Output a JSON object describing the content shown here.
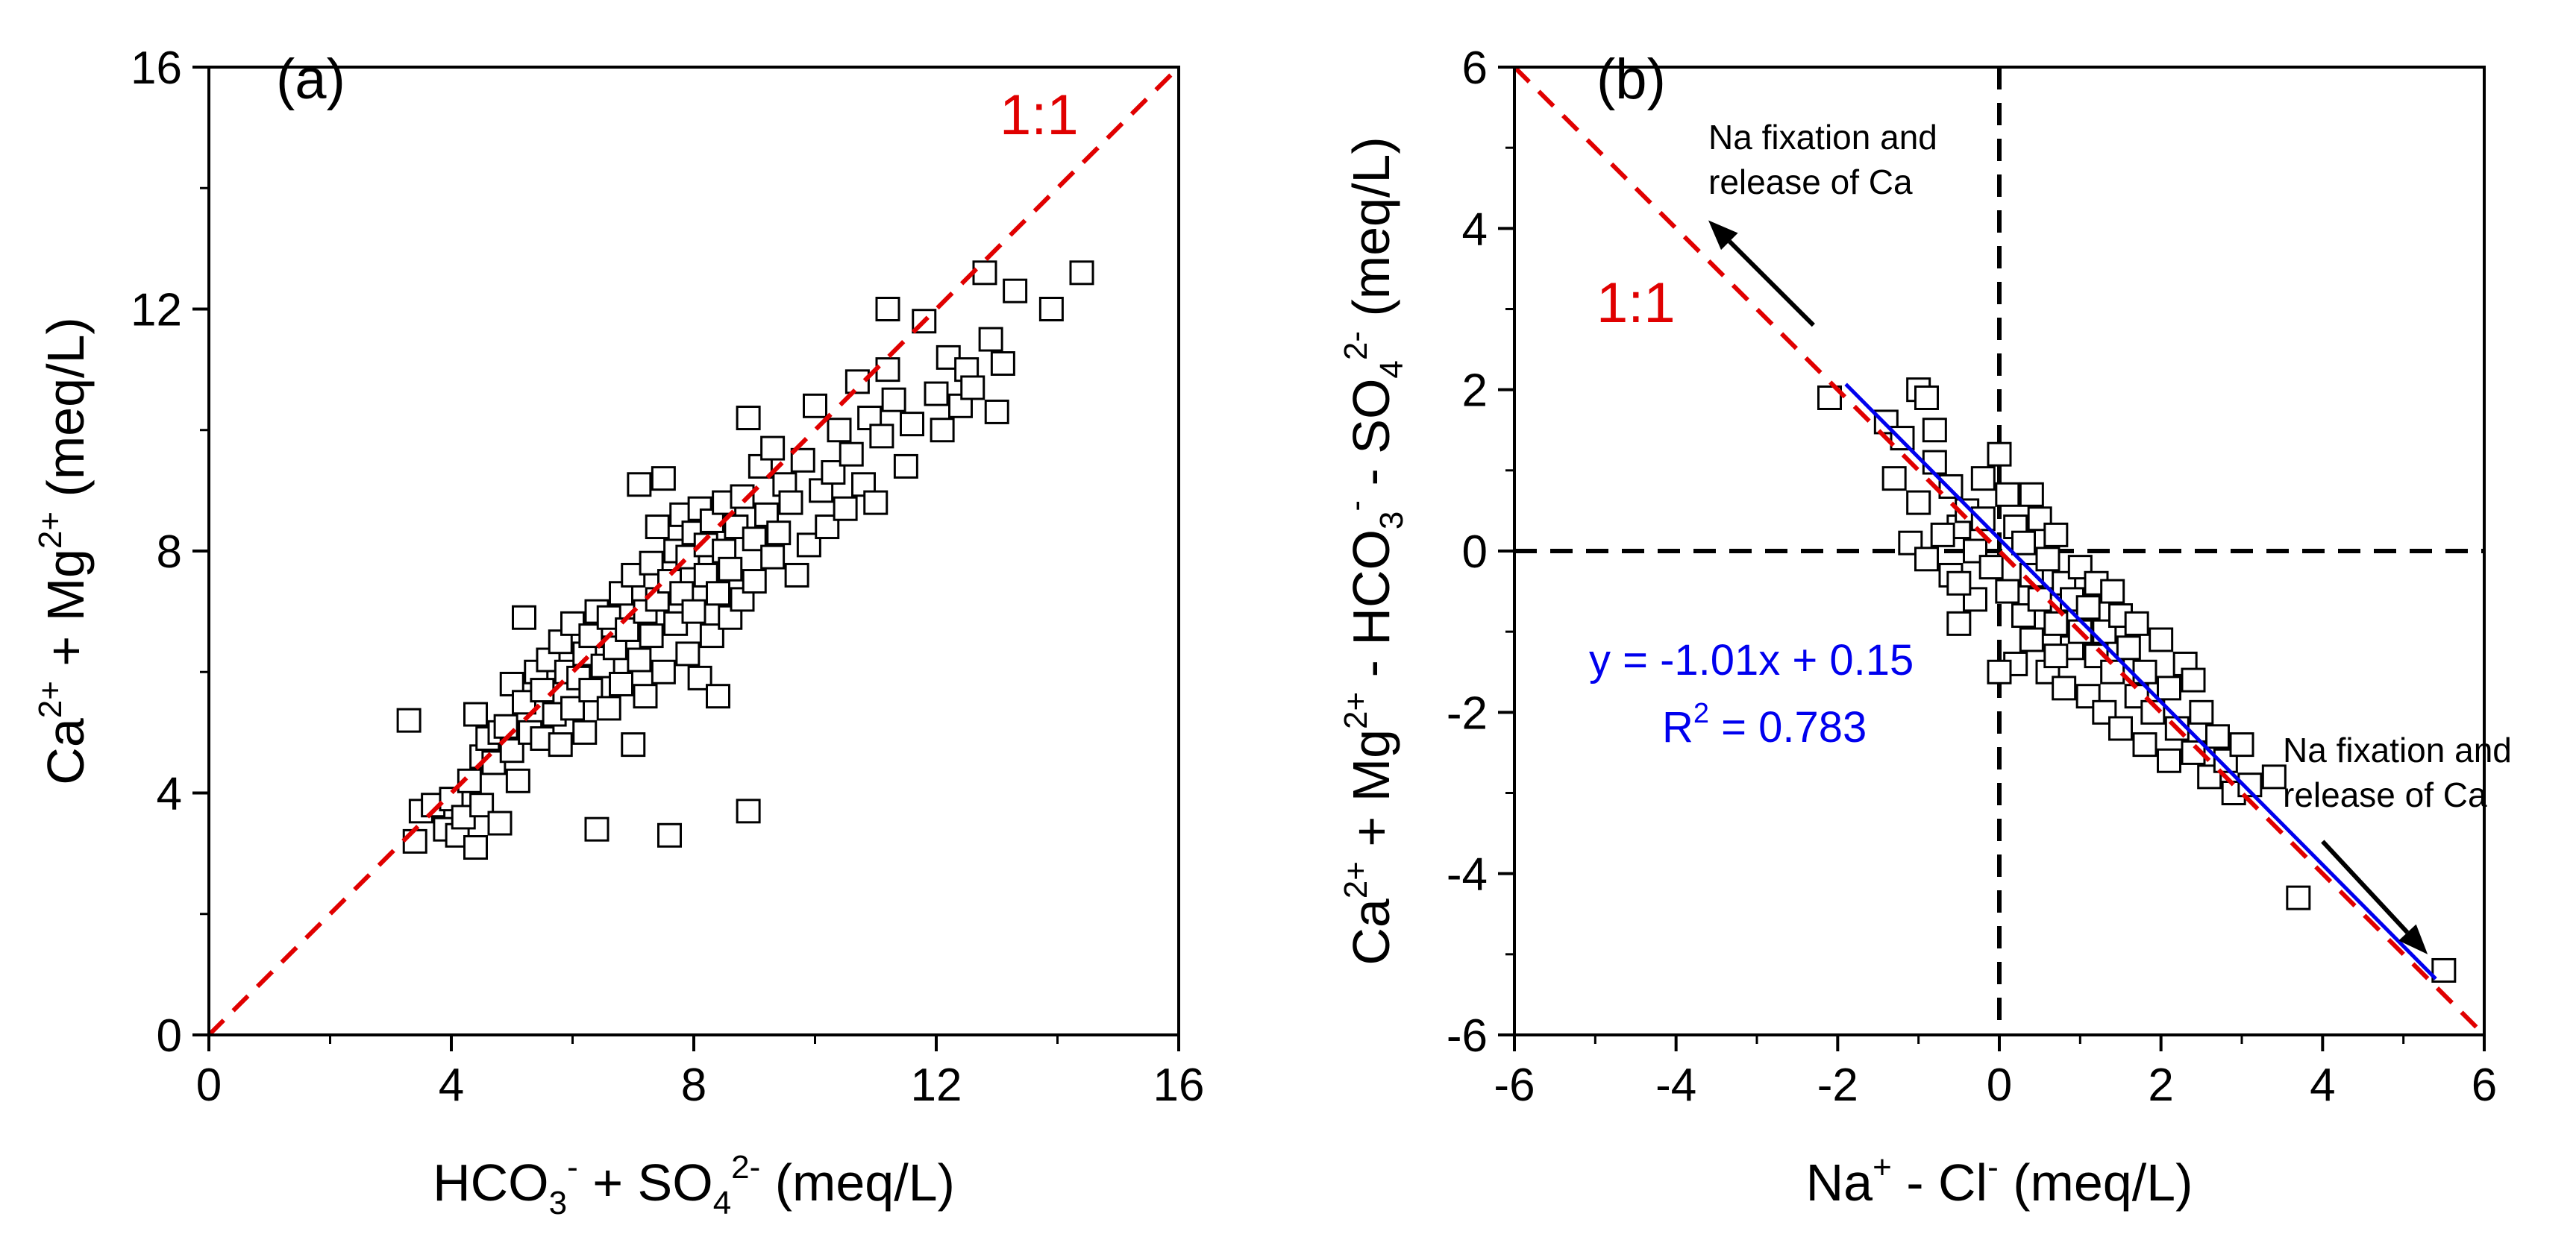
{
  "chart_data": [
    {
      "type": "scatter",
      "panel_label": "(a)",
      "xlabel": "HCO3- + SO42- (meq/L)",
      "xlabel_parts": {
        "a": "HCO",
        "b": "3",
        "c": "-",
        "d": " + SO",
        "e": "4",
        "f": "2-",
        "g": " (meq/L)"
      },
      "ylabel": "Ca2+ + Mg2+ (meq/L)",
      "ylabel_parts": {
        "a": "Ca",
        "b": "2+",
        "c": " + Mg",
        "d": "2+",
        "e": " (meq/L)"
      },
      "xlim": [
        0,
        16
      ],
      "ylim": [
        0,
        16
      ],
      "x_ticks": [
        0,
        4,
        8,
        12,
        16
      ],
      "x_tick_labels": [
        "0",
        "4",
        "8",
        "12",
        "16"
      ],
      "y_ticks": [
        0,
        4,
        8,
        12,
        16
      ],
      "y_tick_labels": [
        "0",
        "4",
        "8",
        "12",
        "16"
      ],
      "reference_line": {
        "label": "1:1",
        "from": [
          0,
          0
        ],
        "to": [
          16,
          16
        ],
        "color": "#e00000"
      },
      "marker_color": "#000000",
      "points": [
        [
          3.3,
          5.2
        ],
        [
          3.4,
          3.2
        ],
        [
          3.5,
          3.7
        ],
        [
          3.7,
          3.8
        ],
        [
          3.9,
          3.4
        ],
        [
          4.0,
          3.9
        ],
        [
          4.1,
          3.3
        ],
        [
          4.2,
          3.6
        ],
        [
          4.3,
          4.2
        ],
        [
          4.4,
          3.1
        ],
        [
          4.4,
          5.3
        ],
        [
          4.5,
          4.6
        ],
        [
          4.5,
          3.8
        ],
        [
          4.6,
          4.9
        ],
        [
          4.7,
          4.5
        ],
        [
          4.8,
          5.0
        ],
        [
          4.8,
          3.5
        ],
        [
          4.9,
          5.1
        ],
        [
          5.0,
          4.7
        ],
        [
          5.0,
          5.8
        ],
        [
          5.1,
          4.2
        ],
        [
          5.2,
          5.5
        ],
        [
          5.2,
          6.9
        ],
        [
          5.3,
          5.0
        ],
        [
          5.4,
          6.0
        ],
        [
          5.5,
          4.9
        ],
        [
          5.5,
          5.7
        ],
        [
          5.6,
          6.2
        ],
        [
          5.7,
          5.3
        ],
        [
          5.8,
          6.5
        ],
        [
          5.8,
          4.8
        ],
        [
          5.9,
          6.0
        ],
        [
          6.0,
          5.4
        ],
        [
          6.0,
          6.8
        ],
        [
          6.1,
          5.9
        ],
        [
          6.2,
          6.3
        ],
        [
          6.2,
          5.0
        ],
        [
          6.3,
          6.6
        ],
        [
          6.3,
          5.7
        ],
        [
          6.4,
          3.4
        ],
        [
          6.4,
          7.0
        ],
        [
          6.5,
          6.1
        ],
        [
          6.6,
          5.4
        ],
        [
          6.6,
          6.9
        ],
        [
          6.7,
          6.4
        ],
        [
          6.8,
          7.3
        ],
        [
          6.8,
          5.8
        ],
        [
          6.9,
          6.7
        ],
        [
          7.0,
          4.8
        ],
        [
          7.0,
          7.6
        ],
        [
          7.1,
          6.2
        ],
        [
          7.1,
          9.1
        ],
        [
          7.2,
          7.0
        ],
        [
          7.2,
          5.6
        ],
        [
          7.3,
          7.8
        ],
        [
          7.3,
          6.6
        ],
        [
          7.4,
          8.4
        ],
        [
          7.4,
          7.2
        ],
        [
          7.5,
          9.2
        ],
        [
          7.5,
          6.0
        ],
        [
          7.6,
          7.5
        ],
        [
          7.6,
          3.3
        ],
        [
          7.7,
          8.0
        ],
        [
          7.7,
          6.8
        ],
        [
          7.8,
          8.6
        ],
        [
          7.8,
          7.3
        ],
        [
          7.9,
          6.3
        ],
        [
          7.9,
          7.9
        ],
        [
          8.0,
          8.3
        ],
        [
          8.0,
          7.0
        ],
        [
          8.1,
          8.7
        ],
        [
          8.1,
          5.9
        ],
        [
          8.2,
          7.6
        ],
        [
          8.2,
          8.1
        ],
        [
          8.3,
          6.6
        ],
        [
          8.3,
          8.5
        ],
        [
          8.4,
          7.3
        ],
        [
          8.4,
          5.6
        ],
        [
          8.5,
          8.0
        ],
        [
          8.5,
          8.8
        ],
        [
          8.6,
          7.7
        ],
        [
          8.6,
          6.9
        ],
        [
          8.7,
          8.4
        ],
        [
          8.8,
          7.2
        ],
        [
          8.8,
          8.9
        ],
        [
          8.9,
          3.7
        ],
        [
          8.9,
          10.2
        ],
        [
          9.0,
          8.2
        ],
        [
          9.0,
          7.5
        ],
        [
          9.1,
          9.4
        ],
        [
          9.2,
          8.6
        ],
        [
          9.3,
          7.9
        ],
        [
          9.3,
          9.7
        ],
        [
          9.4,
          8.3
        ],
        [
          9.5,
          9.1
        ],
        [
          9.6,
          8.8
        ],
        [
          9.7,
          7.6
        ],
        [
          9.8,
          9.5
        ],
        [
          9.9,
          8.1
        ],
        [
          10.0,
          10.4
        ],
        [
          10.1,
          9.0
        ],
        [
          10.2,
          8.4
        ],
        [
          10.3,
          9.3
        ],
        [
          10.4,
          10.0
        ],
        [
          10.5,
          8.7
        ],
        [
          10.6,
          9.6
        ],
        [
          10.7,
          10.8
        ],
        [
          10.8,
          9.1
        ],
        [
          10.9,
          10.2
        ],
        [
          11.0,
          8.8
        ],
        [
          11.1,
          9.9
        ],
        [
          11.2,
          12.0
        ],
        [
          11.2,
          11.0
        ],
        [
          11.3,
          10.5
        ],
        [
          11.5,
          9.4
        ],
        [
          11.6,
          10.1
        ],
        [
          11.8,
          11.8
        ],
        [
          12.0,
          10.6
        ],
        [
          12.1,
          10.0
        ],
        [
          12.2,
          11.2
        ],
        [
          12.4,
          10.4
        ],
        [
          12.5,
          11.0
        ],
        [
          12.6,
          10.7
        ],
        [
          12.8,
          12.6
        ],
        [
          12.9,
          11.5
        ],
        [
          13.0,
          10.3
        ],
        [
          13.1,
          11.1
        ],
        [
          13.3,
          12.3
        ],
        [
          13.9,
          12.0
        ],
        [
          14.4,
          12.6
        ]
      ]
    },
    {
      "type": "scatter",
      "panel_label": "(b)",
      "xlabel": "Na+ - Cl- (meq/L)",
      "xlabel_parts": {
        "a": "Na",
        "b": "+",
        "c": " - Cl",
        "d": "-",
        "e": " (meq/L)"
      },
      "ylabel": "Ca2+ + Mg2+ - HCO3- - SO42- (meq/L)",
      "ylabel_parts": {
        "a": "Ca",
        "b": "2+",
        "c": " + Mg",
        "d": "2+",
        "e": " - HCO",
        "f": "3",
        "g": "-",
        "h": " - SO",
        "i": "4",
        "j": "2-",
        "k": " (meq/L)"
      },
      "xlim": [
        -6,
        6
      ],
      "ylim": [
        -6,
        6
      ],
      "x_ticks": [
        -6,
        -4,
        -2,
        0,
        2,
        4,
        6
      ],
      "x_tick_labels": [
        "-6",
        "-4",
        "-2",
        "0",
        "2",
        "4",
        "6"
      ],
      "y_ticks": [
        -6,
        -4,
        -2,
        0,
        2,
        4,
        6
      ],
      "y_tick_labels": [
        "-6",
        "-4",
        "-2",
        "0",
        "2",
        "4",
        "6"
      ],
      "reference_line": {
        "label": "1:1",
        "from": [
          -6,
          6
        ],
        "to": [
          6,
          -6
        ],
        "color": "#e00000"
      },
      "fit_line": {
        "slope": -1.01,
        "intercept": 0.15,
        "x_range": [
          -1.9,
          5.4
        ],
        "color": "#0000ee"
      },
      "equation": "y = -1.01x + 0.15",
      "r2_parts": {
        "a": "R",
        "b": "2",
        "c": " = 0.783"
      },
      "annotations": [
        {
          "line1": "Na fixation and",
          "line2": "release of Ca",
          "arrow_from": [
            -2.3,
            2.8
          ],
          "arrow_to": [
            -3.6,
            4.1
          ]
        },
        {
          "line1": "Na fixation and",
          "line2": "release of Ca",
          "arrow_from": [
            4.0,
            -3.6
          ],
          "arrow_to": [
            5.3,
            -5.0
          ]
        }
      ],
      "zero_lines": {
        "x": 0,
        "y": 0,
        "color": "#000000",
        "style": "dashed"
      },
      "marker_color": "#000000",
      "points": [
        [
          -2.1,
          1.9
        ],
        [
          -1.4,
          1.6
        ],
        [
          -1.2,
          1.4
        ],
        [
          -1.0,
          2.0
        ],
        [
          -0.9,
          1.9
        ],
        [
          -0.8,
          1.5
        ],
        [
          -1.3,
          0.9
        ],
        [
          -1.0,
          0.6
        ],
        [
          -0.8,
          1.1
        ],
        [
          -0.6,
          0.8
        ],
        [
          -0.5,
          0.3
        ],
        [
          -1.1,
          0.1
        ],
        [
          -0.9,
          -0.1
        ],
        [
          -0.7,
          0.2
        ],
        [
          -0.6,
          -0.3
        ],
        [
          -0.4,
          0.5
        ],
        [
          -0.3,
          0.0
        ],
        [
          -0.2,
          0.9
        ],
        [
          -0.3,
          -0.6
        ],
        [
          -0.5,
          -0.9
        ],
        [
          -0.1,
          -0.2
        ],
        [
          0.0,
          1.2
        ],
        [
          0.1,
          0.7
        ],
        [
          0.1,
          -0.5
        ],
        [
          0.2,
          -1.4
        ],
        [
          0.2,
          0.3
        ],
        [
          0.3,
          -0.8
        ],
        [
          0.3,
          0.1
        ],
        [
          0.4,
          -0.3
        ],
        [
          0.4,
          -1.1
        ],
        [
          0.5,
          0.4
        ],
        [
          0.5,
          -0.6
        ],
        [
          0.6,
          -1.5
        ],
        [
          0.6,
          -0.1
        ],
        [
          0.7,
          -0.9
        ],
        [
          0.7,
          0.2
        ],
        [
          0.8,
          -0.4
        ],
        [
          0.8,
          -1.7
        ],
        [
          0.9,
          -1.2
        ],
        [
          0.9,
          -0.6
        ],
        [
          1.0,
          -0.2
        ],
        [
          1.0,
          -1.0
        ],
        [
          1.1,
          -1.8
        ],
        [
          1.1,
          -0.7
        ],
        [
          1.2,
          -1.3
        ],
        [
          1.2,
          -0.4
        ],
        [
          1.3,
          -2.0
        ],
        [
          1.3,
          -1.0
        ],
        [
          1.4,
          -1.5
        ],
        [
          1.5,
          -0.8
        ],
        [
          1.5,
          -2.2
        ],
        [
          1.6,
          -1.2
        ],
        [
          1.7,
          -1.8
        ],
        [
          1.7,
          -0.9
        ],
        [
          1.8,
          -2.4
        ],
        [
          1.8,
          -1.5
        ],
        [
          1.9,
          -2.0
        ],
        [
          2.0,
          -1.1
        ],
        [
          2.1,
          -2.6
        ],
        [
          2.1,
          -1.7
        ],
        [
          2.2,
          -2.2
        ],
        [
          2.3,
          -1.4
        ],
        [
          2.4,
          -2.5
        ],
        [
          2.5,
          -2.0
        ],
        [
          2.6,
          -2.8
        ],
        [
          2.7,
          -2.3
        ],
        [
          2.8,
          -2.6
        ],
        [
          2.9,
          -3.0
        ],
        [
          3.0,
          -2.4
        ],
        [
          3.1,
          -2.9
        ],
        [
          3.4,
          -2.8
        ],
        [
          3.7,
          -4.3
        ],
        [
          5.5,
          -5.2
        ],
        [
          -0.5,
          -0.4
        ],
        [
          0.0,
          -1.5
        ],
        [
          -0.2,
          0.4
        ],
        [
          0.4,
          0.7
        ],
        [
          0.7,
          -1.3
        ],
        [
          1.4,
          -0.5
        ],
        [
          2.4,
          -1.6
        ]
      ]
    }
  ]
}
